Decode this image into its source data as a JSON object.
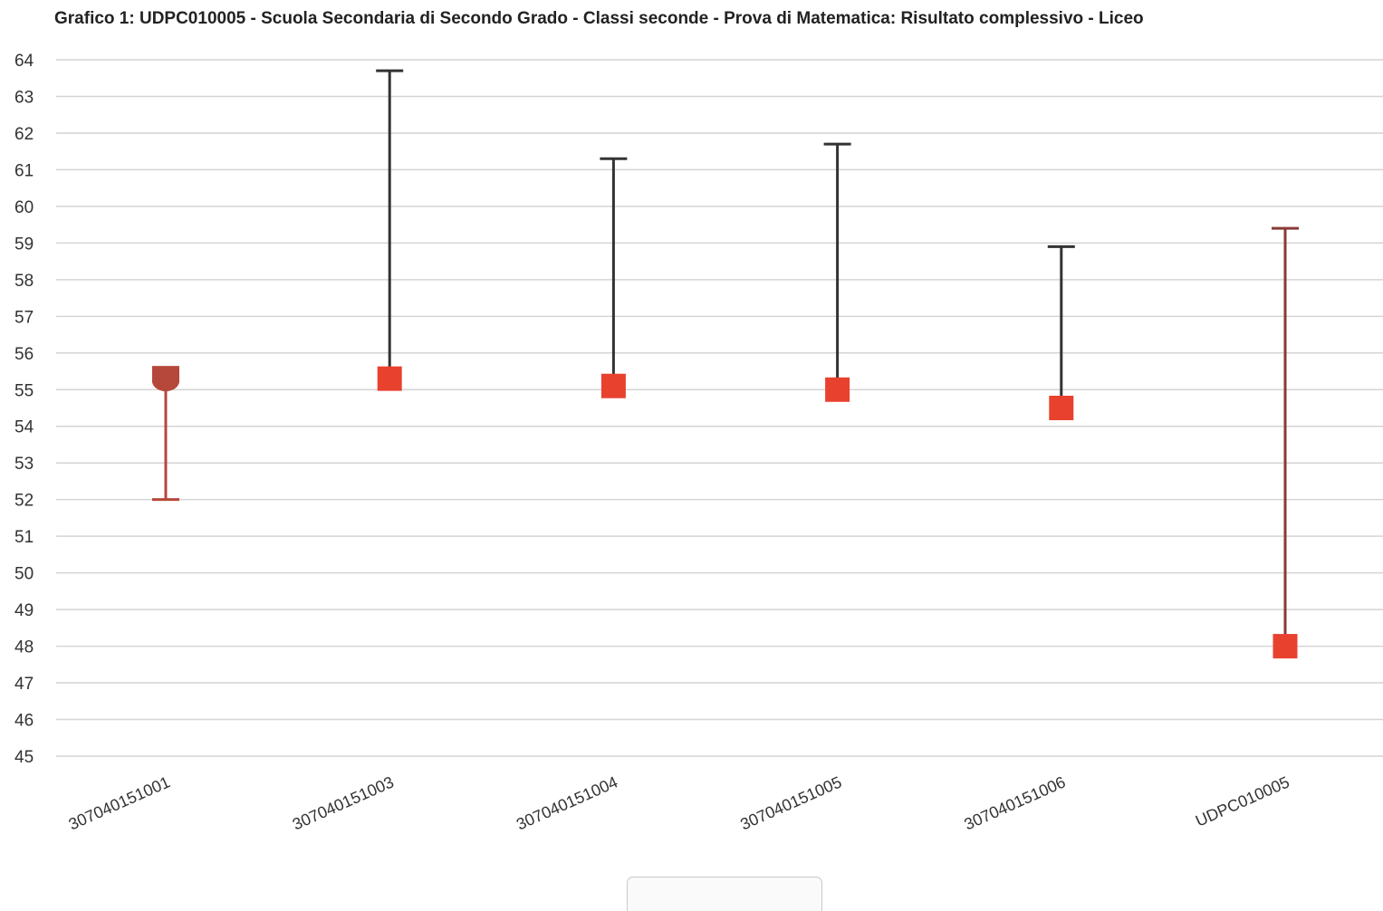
{
  "title": "Grafico 1: UDPC010005 - Scuola Secondaria di Secondo Grado - Classi seconde - Prova di Matematica: Risultato complessivo - Liceo",
  "chart_data": {
    "type": "scatter",
    "variant": "error-bars",
    "title": "Grafico 1: UDPC010005 - Scuola Secondaria di Secondo Grado - Classi seconde - Prova di Matematica: Risultato complessivo - Liceo",
    "xlabel": "",
    "ylabel": "",
    "ylim": [
      45,
      64
    ],
    "yticks": [
      64,
      63,
      62,
      61,
      60,
      59,
      58,
      57,
      56,
      55,
      54,
      53,
      52,
      51,
      50,
      49,
      48,
      47,
      46,
      45
    ],
    "grid": true,
    "categories": [
      "307040151001",
      "307040151003",
      "307040151004",
      "307040151005",
      "307040151006",
      "UDPC010005"
    ],
    "points": [
      {
        "category": "307040151001",
        "value": 55.3,
        "low": 52.0,
        "high": 55.3,
        "color": "#b5483a",
        "marker": "goblet"
      },
      {
        "category": "307040151003",
        "value": 55.3,
        "low": 55.3,
        "high": 63.7,
        "color": "#e8412e",
        "marker": "square"
      },
      {
        "category": "307040151004",
        "value": 55.1,
        "low": 55.1,
        "high": 61.3,
        "color": "#e8412e",
        "marker": "square"
      },
      {
        "category": "307040151005",
        "value": 55.0,
        "low": 55.0,
        "high": 61.7,
        "color": "#e8412e",
        "marker": "square"
      },
      {
        "category": "307040151006",
        "value": 54.5,
        "low": 54.5,
        "high": 58.9,
        "color": "#e8412e",
        "marker": "square"
      },
      {
        "category": "UDPC010005",
        "value": 48.0,
        "low": 48.0,
        "high": 59.4,
        "color": "#e8412e",
        "marker": "square",
        "bar_color": "#8a3a36"
      }
    ],
    "bar_color": "#333333"
  }
}
